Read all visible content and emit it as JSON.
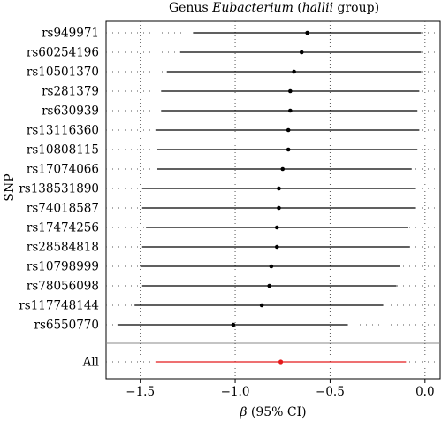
{
  "title": {
    "prefix": "Genus ",
    "italic1": "Eubacterium",
    "mid": " (",
    "italic2": "hallii",
    "suffix": " group)"
  },
  "chart_data": {
    "type": "forest",
    "title": "Genus Eubacterium (hallii group)",
    "ylabel": "SNP",
    "xlabel": "β (95% CI)",
    "xlim": [
      -1.68,
      0.08
    ],
    "xticks": [
      -1.5,
      -1.0,
      -0.5,
      0.0
    ],
    "xtick_labels": [
      "−1.5",
      "−1.0",
      "−0.5",
      "0.0"
    ],
    "grid": "dotted vertical lines at ticks",
    "snps": [
      {
        "label": "rs949971",
        "beta": -0.62,
        "lower": -1.22,
        "upper": -0.02
      },
      {
        "label": "rs60254196",
        "beta": -0.65,
        "lower": -1.29,
        "upper": -0.02
      },
      {
        "label": "rs10501370",
        "beta": -0.69,
        "lower": -1.36,
        "upper": -0.02
      },
      {
        "label": "rs281379",
        "beta": -0.71,
        "lower": -1.39,
        "upper": -0.03
      },
      {
        "label": "rs630939",
        "beta": -0.71,
        "lower": -1.39,
        "upper": -0.04
      },
      {
        "label": "rs13116360",
        "beta": -0.72,
        "lower": -1.42,
        "upper": -0.03
      },
      {
        "label": "rs10808115",
        "beta": -0.72,
        "lower": -1.41,
        "upper": -0.04
      },
      {
        "label": "rs17074066",
        "beta": -0.75,
        "lower": -1.41,
        "upper": -0.07
      },
      {
        "label": "rs138531890",
        "beta": -0.77,
        "lower": -1.49,
        "upper": -0.05
      },
      {
        "label": "rs74018587",
        "beta": -0.77,
        "lower": -1.49,
        "upper": -0.05
      },
      {
        "label": "rs17474256",
        "beta": -0.78,
        "lower": -1.47,
        "upper": -0.09
      },
      {
        "label": "rs28584818",
        "beta": -0.78,
        "lower": -1.49,
        "upper": -0.08
      },
      {
        "label": "rs10798999",
        "beta": -0.81,
        "lower": -1.5,
        "upper": -0.13
      },
      {
        "label": "rs78056098",
        "beta": -0.82,
        "lower": -1.49,
        "upper": -0.15
      },
      {
        "label": "rs117748144",
        "beta": -0.86,
        "lower": -1.53,
        "upper": -0.22
      },
      {
        "label": "rs6550770",
        "beta": -1.01,
        "lower": -1.62,
        "upper": -0.41
      }
    ],
    "summary": {
      "label": "All",
      "beta": -0.76,
      "lower": -1.42,
      "upper": -0.1
    },
    "colors": {
      "snp": "#000000",
      "summary": "#e41a1c",
      "grid": "#555555"
    }
  }
}
